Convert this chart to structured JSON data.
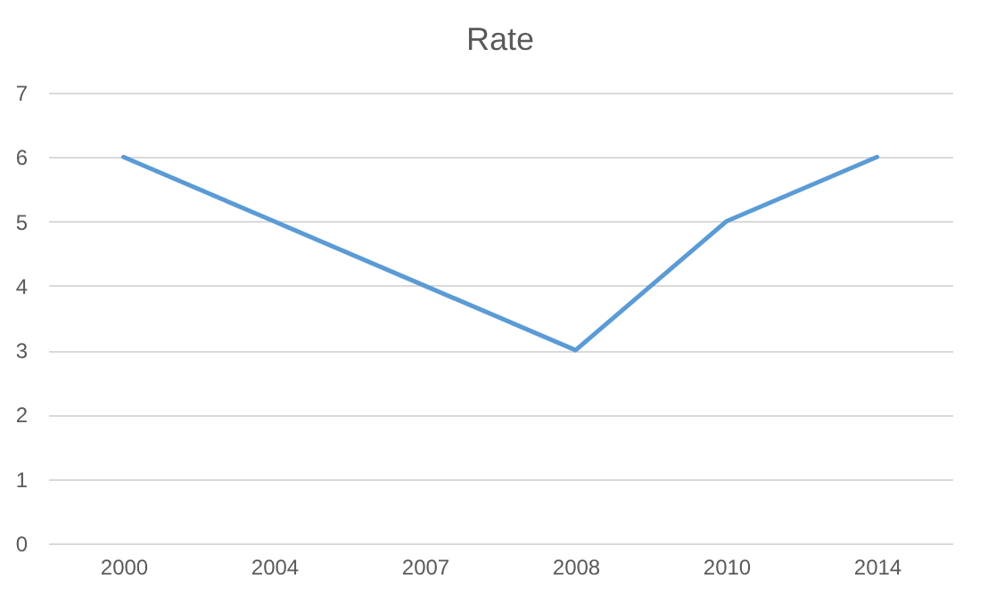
{
  "chart_data": {
    "type": "line",
    "title": "Rate",
    "categories": [
      "2000",
      "2004",
      "2007",
      "2008",
      "2010",
      "2014"
    ],
    "series": [
      {
        "color": "#5b9bd5",
        "values": [
          6,
          5,
          4,
          3,
          5,
          6
        ]
      }
    ],
    "ylim": [
      0,
      7
    ],
    "yticks": [
      0,
      1,
      2,
      3,
      4,
      5,
      6,
      7
    ],
    "grid": "y",
    "line_style": "solid"
  }
}
